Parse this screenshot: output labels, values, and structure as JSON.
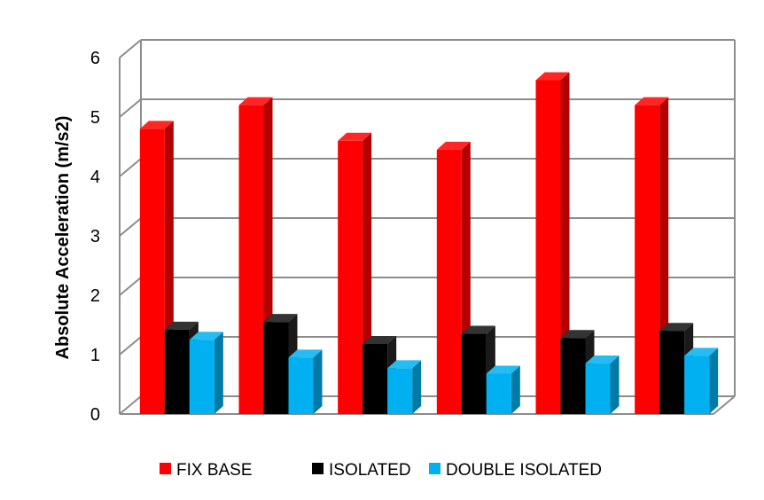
{
  "chart_data": {
    "type": "bar",
    "title": "",
    "xlabel": "",
    "ylabel": "Absolute Acceleration (m/s2)",
    "ylim": [
      0,
      6
    ],
    "yticks": [
      "0",
      "1",
      "2",
      "3",
      "4",
      "5",
      "6"
    ],
    "grid": true,
    "legend_position": "bottom",
    "categories": [
      "",
      "",
      "",
      "",
      "",
      ""
    ],
    "series": [
      {
        "name": "FIX BASE",
        "color": "#ff0000",
        "values": [
          4.8,
          5.2,
          4.6,
          4.45,
          5.62,
          5.2
        ]
      },
      {
        "name": "ISOLATED",
        "color": "#000000",
        "values": [
          1.42,
          1.55,
          1.18,
          1.35,
          1.28,
          1.4
        ]
      },
      {
        "name": "DOUBLE ISOLATED",
        "color": "#00b0f0",
        "values": [
          1.25,
          0.95,
          0.77,
          0.68,
          0.85,
          0.98
        ]
      }
    ]
  }
}
